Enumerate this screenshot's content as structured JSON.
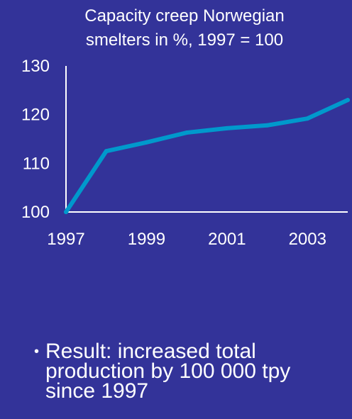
{
  "chart_data": {
    "type": "line",
    "title_lines": [
      "Capacity creep Norwegian",
      "smelters in %, 1997 = 100"
    ],
    "x": [
      1997,
      1998,
      1999,
      2000,
      2001,
      2002,
      2003,
      2004
    ],
    "values": [
      100,
      112.5,
      114.3,
      116.3,
      117.2,
      117.8,
      119.2,
      123.0
    ],
    "x_ticks": [
      "1997",
      "1999",
      "2001",
      "2003"
    ],
    "y_ticks": [
      "100",
      "110",
      "120",
      "130"
    ],
    "ylim": [
      100,
      130
    ],
    "grid": false,
    "line_color": "#0099cc"
  },
  "bullet": {
    "text": "Result: increased total production by 100 000 tpy since 1997"
  },
  "colors": {
    "background": "#333399",
    "text": "#ffffff",
    "line": "#0099cc"
  }
}
